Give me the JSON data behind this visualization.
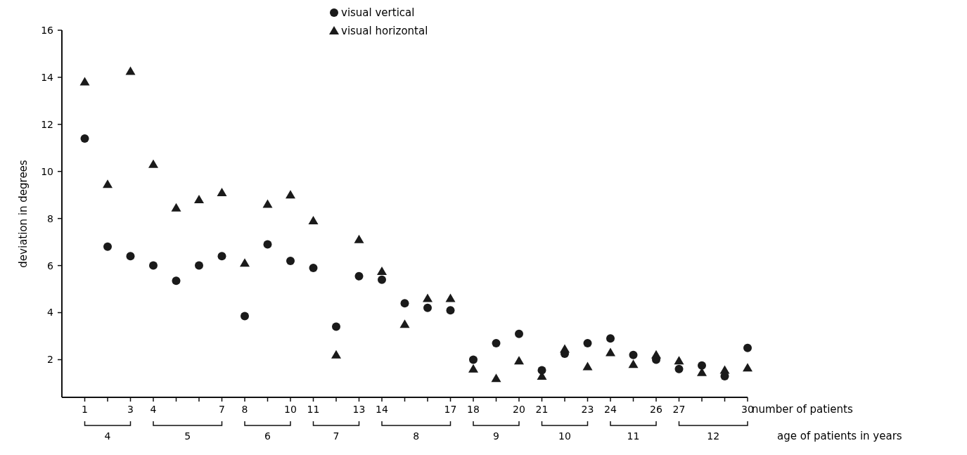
{
  "chart_data": {
    "type": "scatter",
    "ylabel": "deviation in degrees",
    "xlabel": "number of patients",
    "x": [
      1,
      2,
      3,
      4,
      5,
      6,
      7,
      8,
      9,
      10,
      11,
      12,
      13,
      14,
      15,
      16,
      17,
      18,
      19,
      20,
      21,
      22,
      23,
      24,
      25,
      26,
      27,
      28,
      29,
      30
    ],
    "series": [
      {
        "name": "visual vertical",
        "color": "#1a1a1a",
        "marker": "circle",
        "values": [
          11.4,
          6.8,
          6.4,
          6.0,
          5.35,
          6.0,
          6.4,
          3.85,
          6.9,
          6.2,
          5.9,
          3.4,
          5.55,
          5.4,
          4.4,
          4.2,
          4.1,
          2.0,
          2.7,
          3.1,
          1.55,
          2.25,
          2.7,
          2.9,
          2.2,
          2.0,
          1.6,
          1.75,
          1.3,
          2.5
        ]
      },
      {
        "name": "visual horizontal",
        "color": "#1a1a1a",
        "marker": "triangle",
        "values": [
          13.8,
          9.45,
          14.25,
          10.3,
          8.45,
          8.8,
          9.1,
          6.1,
          8.6,
          9.0,
          7.9,
          2.2,
          7.1,
          5.75,
          3.5,
          4.6,
          4.6,
          1.6,
          1.2,
          1.95,
          1.3,
          2.45,
          1.7,
          2.3,
          1.8,
          2.2,
          1.95,
          1.45,
          1.55,
          1.65
        ]
      }
    ],
    "xlim": [
      0,
      30
    ],
    "xticks": [
      1,
      {
        "value": 2,
        "label": null
      },
      3,
      4,
      {
        "value": 5,
        "label": null
      },
      {
        "value": 6,
        "label": null
      },
      7,
      8,
      {
        "value": 9,
        "label": null
      },
      10,
      11,
      {
        "value": 12,
        "label": null
      },
      13,
      14,
      {
        "value": 15,
        "label": null
      },
      {
        "value": 16,
        "label": null
      },
      17,
      18,
      {
        "value": 19,
        "label": null
      },
      20,
      21,
      {
        "value": 22,
        "label": null
      },
      23,
      24,
      {
        "value": 25,
        "label": null
      },
      26,
      27,
      {
        "value": 28,
        "label": null
      },
      {
        "value": 29,
        "label": null
      },
      30
    ],
    "ylim": [
      0.4,
      16
    ],
    "yticks": [
      2,
      4,
      6,
      8,
      10,
      12,
      14,
      16
    ],
    "annotations": [
      "4",
      "5",
      "6",
      "7",
      "8",
      "9",
      "10",
      "11",
      "12",
      "age of patients in years"
    ],
    "legend": "top",
    "grid": false
  }
}
